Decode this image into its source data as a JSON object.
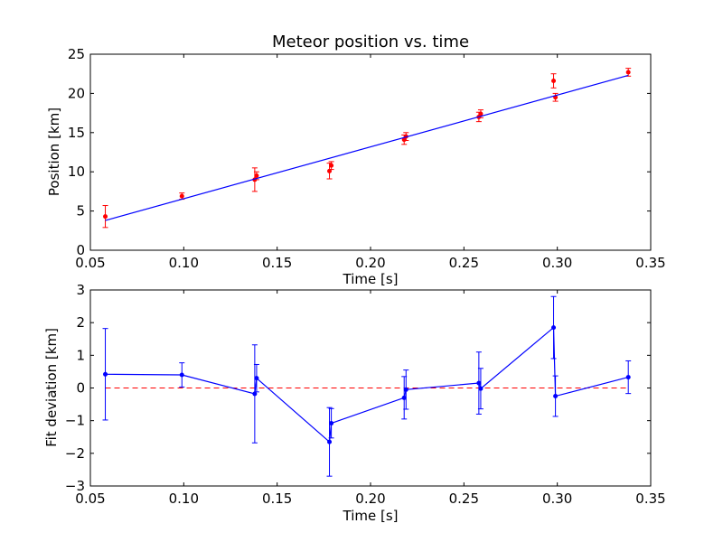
{
  "chart_data": [
    {
      "type": "scatter",
      "title": "Meteor position vs. time",
      "xlabel": "Time [s]",
      "ylabel": "Position [km]",
      "xlim": [
        0.05,
        0.35
      ],
      "ylim": [
        0,
        25
      ],
      "xticks": [
        "0.05",
        "0.10",
        "0.15",
        "0.20",
        "0.25",
        "0.30",
        "0.35"
      ],
      "yticks": [
        "0",
        "5",
        "10",
        "15",
        "20",
        "25"
      ],
      "grid": false,
      "colors": {
        "points": "#ff0000",
        "fit": "#0000ff"
      },
      "series": [
        {
          "kind": "errorbar-points",
          "x": [
            0.058,
            0.099,
            0.138,
            0.139,
            0.178,
            0.179,
            0.218,
            0.219,
            0.258,
            0.259,
            0.298,
            0.299,
            0.338
          ],
          "y": [
            4.3,
            6.9,
            9.0,
            9.5,
            10.1,
            10.8,
            14.1,
            14.5,
            17.0,
            17.4,
            21.6,
            19.5,
            22.7
          ],
          "yerr": [
            1.4,
            0.4,
            1.5,
            0.5,
            1.0,
            0.5,
            0.6,
            0.5,
            0.6,
            0.5,
            0.9,
            0.5,
            0.5
          ]
        },
        {
          "kind": "fit-line",
          "x": [
            0.058,
            0.338
          ],
          "y": [
            3.8,
            22.3
          ]
        }
      ]
    },
    {
      "type": "line",
      "title": "",
      "xlabel": "Time [s]",
      "ylabel": "Fit deviation [km]",
      "xlim": [
        0.05,
        0.35
      ],
      "ylim": [
        -3,
        3
      ],
      "xticks": [
        "0.05",
        "0.10",
        "0.15",
        "0.20",
        "0.25",
        "0.30",
        "0.35"
      ],
      "yticks": [
        "−3",
        "−2",
        "−1",
        "0",
        "1",
        "2",
        "3"
      ],
      "grid": false,
      "colors": {
        "line": "#0000ff",
        "zero": "#ff0000"
      },
      "reference_line": {
        "y": 0,
        "style": "dashed"
      },
      "series": [
        {
          "kind": "errorbar-line",
          "x": [
            0.058,
            0.099,
            0.138,
            0.139,
            0.178,
            0.179,
            0.218,
            0.219,
            0.258,
            0.259,
            0.298,
            0.299,
            0.338
          ],
          "y": [
            0.42,
            0.4,
            -0.18,
            0.3,
            -1.65,
            -1.08,
            -0.3,
            -0.05,
            0.15,
            -0.02,
            1.85,
            -0.25,
            0.33
          ],
          "yerr": [
            1.4,
            0.37,
            1.5,
            0.42,
            1.05,
            0.45,
            0.65,
            0.6,
            0.95,
            0.62,
            0.95,
            0.62,
            0.5
          ]
        }
      ]
    }
  ]
}
